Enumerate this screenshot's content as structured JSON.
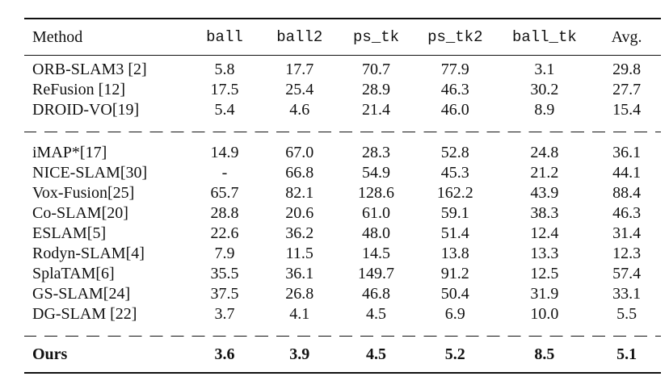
{
  "table": {
    "headers": [
      "Method",
      "ball",
      "ball2",
      "ps_tk",
      "ps_tk2",
      "ball_tk",
      "Avg."
    ],
    "groups": [
      [
        {
          "method": "ORB-SLAM3 [2]",
          "values": [
            "5.8",
            "17.7",
            "70.7",
            "77.9",
            "3.1",
            "29.8"
          ]
        },
        {
          "method": "ReFusion [12]",
          "values": [
            "17.5",
            "25.4",
            "28.9",
            "46.3",
            "30.2",
            "27.7"
          ]
        },
        {
          "method": "DROID-VO[19]",
          "values": [
            "5.4",
            "4.6",
            "21.4",
            "46.0",
            "8.9",
            "15.4"
          ]
        }
      ],
      [
        {
          "method": "iMAP*[17]",
          "values": [
            "14.9",
            "67.0",
            "28.3",
            "52.8",
            "24.8",
            "36.1"
          ]
        },
        {
          "method": "NICE-SLAM[30]",
          "values": [
            "-",
            "66.8",
            "54.9",
            "45.3",
            "21.2",
            "44.1"
          ]
        },
        {
          "method": "Vox-Fusion[25]",
          "values": [
            "65.7",
            "82.1",
            "128.6",
            "162.2",
            "43.9",
            "88.4"
          ]
        },
        {
          "method": "Co-SLAM[20]",
          "values": [
            "28.8",
            "20.6",
            "61.0",
            "59.1",
            "38.3",
            "46.3"
          ]
        },
        {
          "method": "ESLAM[5]",
          "values": [
            "22.6",
            "36.2",
            "48.0",
            "51.4",
            "12.4",
            "31.4"
          ]
        },
        {
          "method": "Rodyn-SLAM[4]",
          "values": [
            "7.9",
            "11.5",
            "14.5",
            "13.8",
            "13.3",
            "12.3"
          ]
        },
        {
          "method": "SplaTAM[6]",
          "values": [
            "35.5",
            "36.1",
            "149.7",
            "91.2",
            "12.5",
            "57.4"
          ]
        },
        {
          "method": "GS-SLAM[24]",
          "values": [
            "37.5",
            "26.8",
            "46.8",
            "50.4",
            "31.9",
            "33.1"
          ]
        },
        {
          "method": "DG-SLAM [22]",
          "values": [
            "3.7",
            "4.1",
            "4.5",
            "6.9",
            "10.0",
            "5.5"
          ]
        }
      ]
    ],
    "ours": {
      "method": "Ours",
      "values": [
        "3.6",
        "3.9",
        "4.5",
        "5.2",
        "8.5",
        "5.1"
      ]
    }
  }
}
